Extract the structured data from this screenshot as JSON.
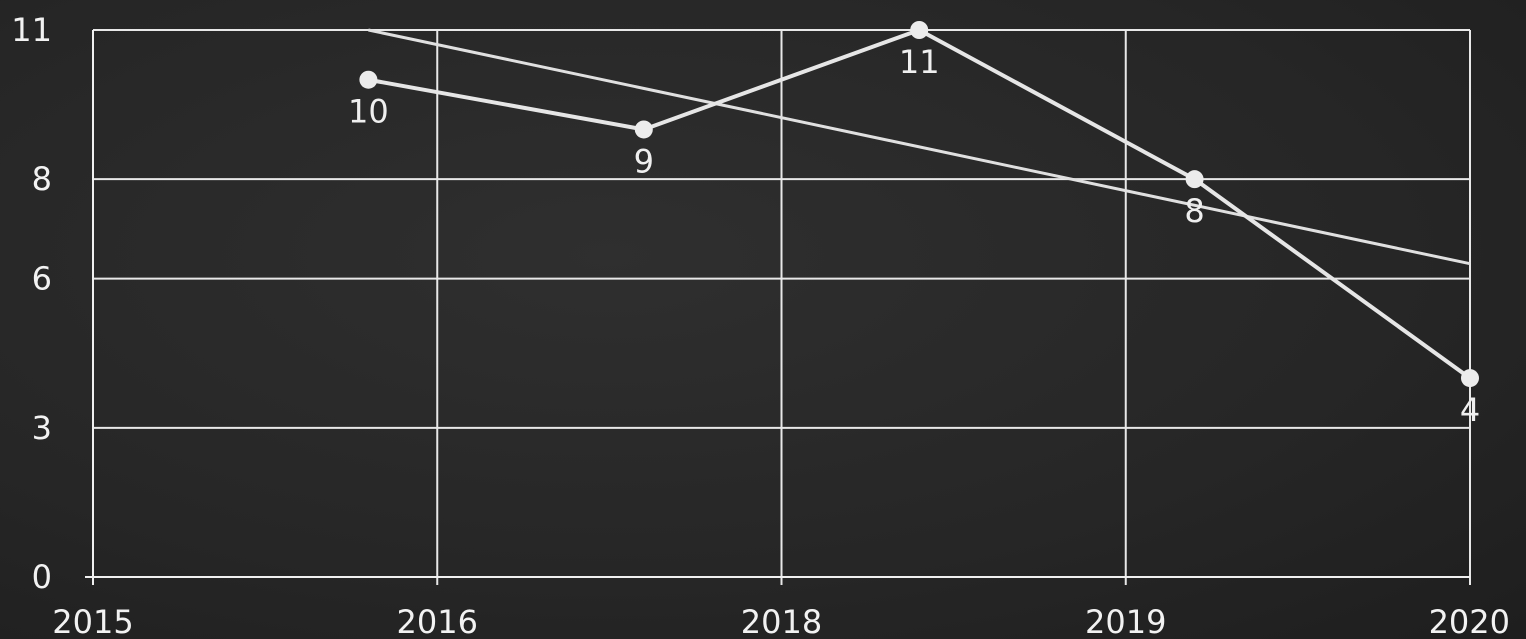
{
  "chart_data": {
    "type": "line",
    "title": "",
    "xlabel": "",
    "ylabel": "",
    "x_tick_labels": [
      "2015",
      "2016",
      "2018",
      "2019",
      "2020"
    ],
    "y_ticks": [
      0,
      3,
      6,
      8,
      11
    ],
    "ylim": [
      0,
      11
    ],
    "grid": true,
    "legend": "none",
    "series": [
      {
        "points": [
          {
            "x": 0.8,
            "y": 10,
            "label": "10"
          },
          {
            "x": 1.6,
            "y": 9,
            "label": "9"
          },
          {
            "x": 2.4,
            "y": 11,
            "label": "11"
          },
          {
            "x": 3.2,
            "y": 8,
            "label": "8"
          },
          {
            "x": 4.0,
            "y": 4,
            "label": "4"
          }
        ],
        "color": "#e6e6e6"
      }
    ],
    "trendline": {
      "start": {
        "x": 0.8,
        "y": 11
      },
      "end": {
        "x": 4.0,
        "y": 6.3
      },
      "color": "#e0e0e0"
    }
  }
}
